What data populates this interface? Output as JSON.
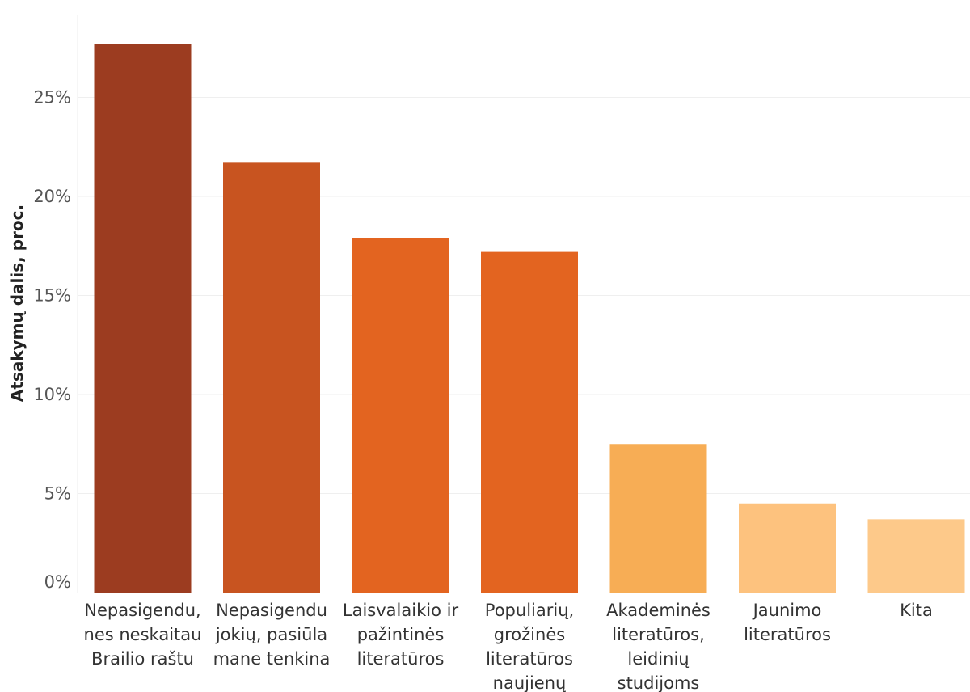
{
  "chart_data": {
    "type": "bar",
    "ylabel": "Atsakymų dalis, proc.",
    "ylim": [
      0,
      29
    ],
    "yticks": [
      "0%",
      "5%",
      "10%",
      "15%",
      "20%",
      "25%"
    ],
    "ytick_values": [
      0,
      5,
      10,
      15,
      20,
      25
    ],
    "grid": true,
    "categories": [
      [
        "Nepasigendu,",
        "nes neskaitau",
        "Brailio raštu"
      ],
      [
        "Nepasigendu",
        "jokių, pasiūla",
        "mane tenkina"
      ],
      [
        "Laisvalaikio ir",
        "pažintinės",
        "literatūros"
      ],
      [
        "Populiarių,",
        "grožinės",
        "literatūros",
        "naujienų"
      ],
      [
        "Akademinės",
        "literatūros,",
        "leidinių",
        "studijoms"
      ],
      [
        "Jaunimo",
        "literatūros"
      ],
      [
        "Kita"
      ]
    ],
    "values": [
      27.7,
      21.7,
      17.9,
      17.2,
      7.5,
      4.5,
      3.7
    ],
    "colors": [
      "#9c3c20",
      "#c85420",
      "#e36420",
      "#e36420",
      "#f7ad55",
      "#fdc27e",
      "#fdc98a"
    ]
  }
}
